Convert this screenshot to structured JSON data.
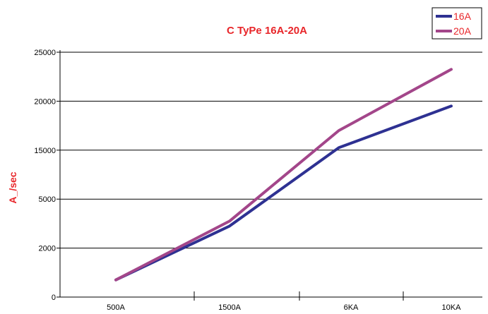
{
  "chart_data": {
    "type": "line",
    "title": "C TyPe 16A-20A",
    "xlabel": "",
    "ylabel": "A_/sec",
    "categories": [
      "500A",
      "1500A",
      "6KA",
      "10KA"
    ],
    "y_tick_labels": [
      "0",
      "2000",
      "5000",
      "15000",
      "20000",
      "25000"
    ],
    "grid": "horizontal",
    "legend_position": "top-right",
    "series": [
      {
        "name": "16A",
        "color": "#2e3192",
        "points": [
          [
            0.0,
            0.35
          ],
          [
            1.0,
            1.45
          ],
          [
            1.9,
            3.05
          ],
          [
            3.0,
            3.9
          ]
        ]
      },
      {
        "name": "20A",
        "color": "#a3468a",
        "points": [
          [
            0.0,
            0.35
          ],
          [
            1.0,
            1.55
          ],
          [
            1.9,
            3.4
          ],
          [
            3.0,
            4.65
          ]
        ]
      }
    ]
  }
}
